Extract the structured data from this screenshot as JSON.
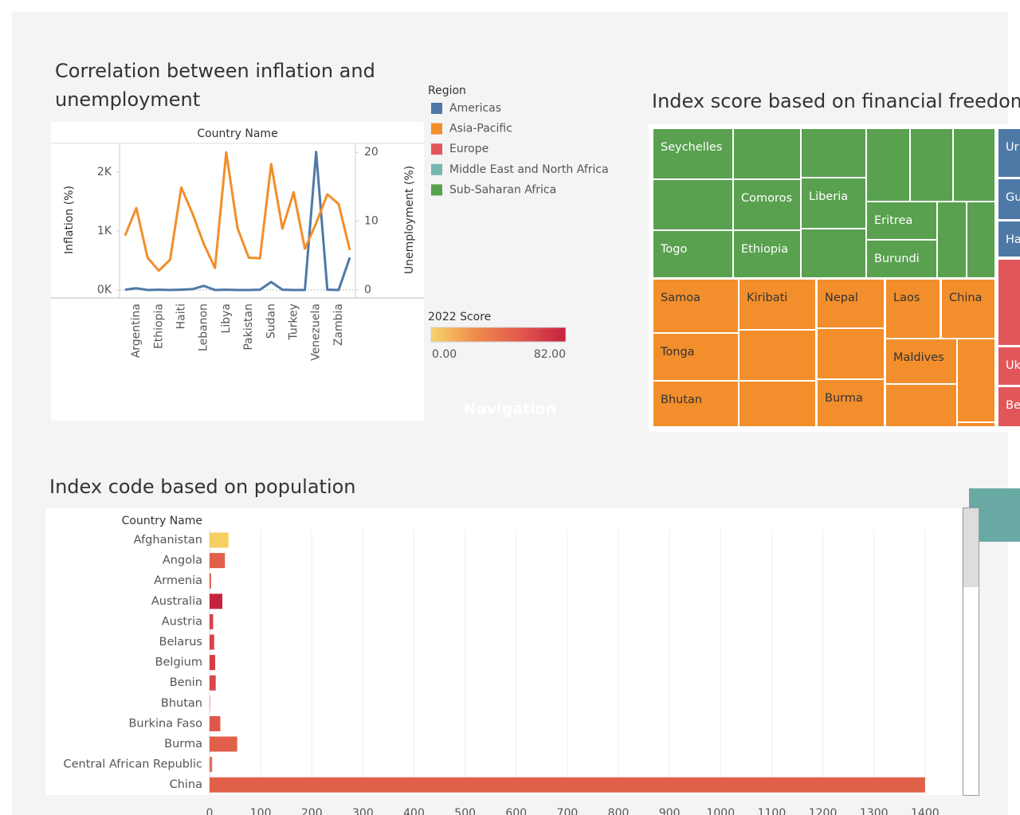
{
  "dashboard": {
    "navigation": "Navigation"
  },
  "legends": {
    "region": {
      "title": "Region",
      "items": [
        {
          "name": "Americas",
          "color": "#4e79a7"
        },
        {
          "name": "Asia-Pacific",
          "color": "#f28e2b"
        },
        {
          "name": "Europe",
          "color": "#e15759"
        },
        {
          "name": "Middle East and North Africa",
          "color": "#76b7b2"
        },
        {
          "name": "Sub-Saharan Africa",
          "color": "#59a14f"
        }
      ]
    },
    "score": {
      "title": "2022 Score",
      "colors": [
        "#f7d56a",
        "#ef8a4a",
        "#e2574c",
        "#c42140"
      ],
      "min": {
        "value": 0,
        "label": "0.00"
      },
      "max": {
        "value": 82,
        "label": "82.00"
      }
    }
  },
  "chart_data": [
    {
      "type": "line",
      "title": "Correlation between inflation and unemployment",
      "x_label": "Country Name",
      "categories": [
        null,
        "Argentina",
        null,
        "Ethiopia",
        null,
        "Haiti",
        null,
        "Lebanon",
        null,
        "Libya",
        null,
        "Pakistan",
        null,
        "Sudan",
        null,
        "Turkey",
        null,
        "Venezuela",
        null,
        "Zambia",
        null
      ],
      "series": [
        {
          "name": "Inflation (%)",
          "color": "#4e79a7",
          "values": [
            5,
            30,
            0,
            5,
            0,
            5,
            15,
            70,
            0,
            5,
            0,
            0,
            5,
            135,
            5,
            0,
            0,
            2340,
            5,
            0,
            550
          ]
        },
        {
          "name": "Unemployment (%)",
          "color": "#f28e2b",
          "axis": "y2",
          "values": [
            7.9,
            11.9,
            4.7,
            2.8,
            4.4,
            14.9,
            11.1,
            6.7,
            3.2,
            20.0,
            9.0,
            4.7,
            4.6,
            18.3,
            8.9,
            14.2,
            6.0,
            9.7,
            13.9,
            12.5,
            5.8
          ]
        }
      ],
      "ylim": [
        -135,
        2485
      ],
      "yticks": [
        {
          "value": 0,
          "label": "0K"
        },
        {
          "value": 1000,
          "label": "1K"
        },
        {
          "value": 2000,
          "label": "2K"
        }
      ],
      "y2lim": [
        -1.16,
        21.3
      ],
      "y2ticks": [
        0,
        10,
        20
      ]
    },
    {
      "type": "treemap",
      "title": "Index score based on financial freedom",
      "cells": [
        {
          "label": "Seychelles",
          "region": "Sub-Saharan Africa"
        },
        {
          "label": null,
          "region": "Sub-Saharan Africa"
        },
        {
          "label": null,
          "region": "Sub-Saharan Africa"
        },
        {
          "label": null,
          "region": "Sub-Saharan Africa"
        },
        {
          "label": null,
          "region": "Sub-Saharan Africa"
        },
        {
          "label": null,
          "region": "Sub-Saharan Africa"
        },
        {
          "label": null,
          "region": "Sub-Saharan Africa"
        },
        {
          "label": "Comoros",
          "region": "Sub-Saharan Africa"
        },
        {
          "label": "Liberia",
          "region": "Sub-Saharan Africa"
        },
        {
          "label": "Eritrea",
          "region": "Sub-Saharan Africa"
        },
        {
          "label": null,
          "region": "Sub-Saharan Africa"
        },
        {
          "label": null,
          "region": "Sub-Saharan Africa"
        },
        {
          "label": "Togo",
          "region": "Sub-Saharan Africa"
        },
        {
          "label": "Ethiopia",
          "region": "Sub-Saharan Africa"
        },
        {
          "label": null,
          "region": "Sub-Saharan Africa"
        },
        {
          "label": "Burundi",
          "region": "Sub-Saharan Africa"
        },
        {
          "label": "Samoa",
          "region": "Asia-Pacific"
        },
        {
          "label": "Kiribati",
          "region": "Asia-Pacific"
        },
        {
          "label": "Nepal",
          "region": "Asia-Pacific"
        },
        {
          "label": "Laos",
          "region": "Asia-Pacific"
        },
        {
          "label": "China",
          "region": "Asia-Pacific"
        },
        {
          "label": "Tonga",
          "region": "Asia-Pacific"
        },
        {
          "label": null,
          "region": "Asia-Pacific"
        },
        {
          "label": null,
          "region": "Asia-Pacific"
        },
        {
          "label": "Maldives",
          "region": "Asia-Pacific"
        },
        {
          "label": null,
          "region": "Asia-Pacific"
        },
        {
          "label": "Bhutan",
          "region": "Asia-Pacific"
        },
        {
          "label": null,
          "region": "Asia-Pacific"
        },
        {
          "label": "Burma",
          "region": "Asia-Pacific"
        },
        {
          "label": null,
          "region": "Asia-Pacific"
        },
        {
          "label": null,
          "region": "Asia-Pacific"
        },
        {
          "label": "Ur",
          "region": "Americas"
        },
        {
          "label": "Gu",
          "region": "Americas"
        },
        {
          "label": "Ha",
          "region": "Americas"
        },
        {
          "label": null,
          "region": "Europe"
        },
        {
          "label": "Uk",
          "region": "Europe"
        },
        {
          "label": "Be",
          "region": "Europe"
        }
      ]
    },
    {
      "type": "bar",
      "orientation": "horizontal",
      "title": "Index code based on population",
      "y_label": "Country Name",
      "categories": [
        "Afghanistan",
        "Angola",
        "Armenia",
        "Australia",
        "Austria",
        "Belarus",
        "Belgium",
        "Benin",
        "Bhutan",
        "Burkina Faso",
        "Burma",
        "Central African Republic",
        "China"
      ],
      "values": [
        37,
        30,
        3,
        25,
        7,
        9,
        11,
        12,
        1,
        21,
        54,
        5,
        1400
      ],
      "colors": [
        "#f5cf62",
        "#e0604a",
        "#e0604a",
        "#c4243b",
        "#d9434a",
        "#d9434a",
        "#d63c48",
        "#d94549",
        "#e9806a",
        "#e0554a",
        "#e0604a",
        "#e07050",
        "#e0604a"
      ],
      "xlim": [
        0,
        1472
      ],
      "xticks": [
        0,
        100,
        200,
        300,
        400,
        500,
        600,
        700,
        800,
        900,
        1000,
        1100,
        1200,
        1300,
        1400
      ],
      "grid": true
    }
  ]
}
